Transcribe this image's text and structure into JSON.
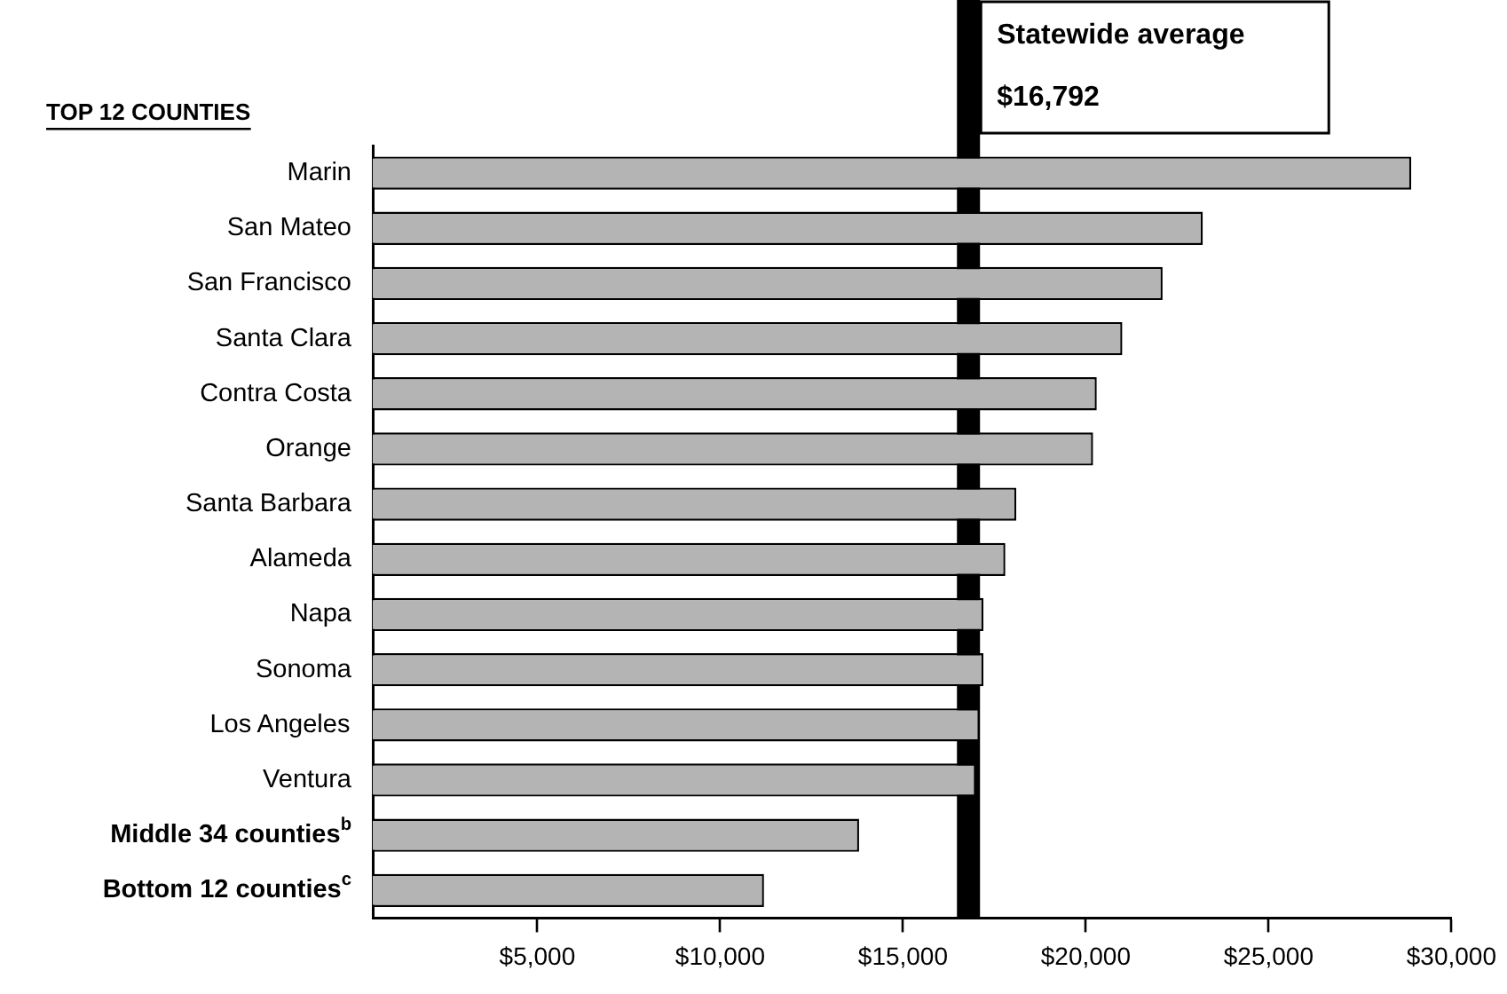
{
  "chart_data": {
    "type": "bar",
    "orientation": "horizontal",
    "categories": [
      "Marin",
      "San Mateo",
      "San Francisco",
      "Santa Clara",
      "Contra Costa",
      "Orange",
      "Santa Barbara",
      "Alameda",
      "Napa",
      "Sonoma",
      "Los Angeles",
      "Ventura",
      "Middle 34 counties$^{b}$",
      "Bottom 12 counties$^{c}$"
    ],
    "values": [
      28900.0,
      23200.0,
      22100.0,
      21000.0,
      20300.0,
      20200.0,
      18100.0,
      17800.0,
      17200.0,
      17200.0,
      17100.0,
      17000.0,
      13800.0,
      11200.0
    ],
    "color": "#b4b4b4",
    "xlim": [
      500,
      30000
    ],
    "xticks": [
      {
        "value": 5000,
        "label": "$5,000"
      },
      {
        "value": 10000,
        "label": "$10,000"
      },
      {
        "value": 15000,
        "label": "$15,000"
      },
      {
        "value": 20000,
        "label": "$20,000"
      },
      {
        "value": 25000,
        "label": "$25,000"
      },
      {
        "value": 30000,
        "label": "$30,000"
      }
    ],
    "ref_lines": [
      {
        "axis": "x",
        "value": 16792,
        "label": "Statewide average\n$16,792",
        "color": "#000000"
      }
    ],
    "annotations": [
      "TOP 12 COUNTIES"
    ],
    "grid": false,
    "legend": false
  }
}
